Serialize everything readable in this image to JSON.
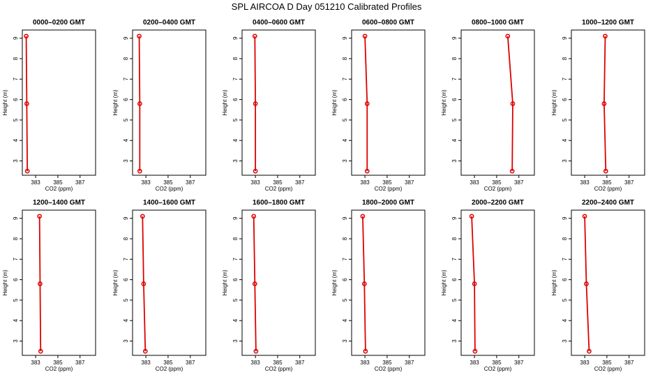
{
  "figure": {
    "title": "SPL AIRCOA D  Day 051210  Calibrated Profiles"
  },
  "axes": {
    "xlabel": "CO2 (ppm)",
    "ylabel": "Height (m)",
    "xticks": [
      383,
      385,
      387
    ],
    "yticks": [
      3,
      4,
      5,
      6,
      7,
      8,
      9
    ]
  },
  "colors": {
    "series": "#dd0000",
    "axis": "#000000"
  },
  "chart_data": [
    {
      "type": "line",
      "title": "0000–0200 GMT",
      "xlabel": "CO2 (ppm)",
      "ylabel": "Height (m)",
      "xlim": [
        381.8,
        388.4
      ],
      "ylim": [
        2.3,
        9.4
      ],
      "points": [
        {
          "x": 382.15,
          "y": 9.1
        },
        {
          "x": 382.2,
          "y": 5.8
        },
        {
          "x": 382.25,
          "y": 2.5
        }
      ]
    },
    {
      "type": "line",
      "title": "0200–0400 GMT",
      "xlabel": "CO2 (ppm)",
      "ylabel": "Height (m)",
      "xlim": [
        381.8,
        388.4
      ],
      "ylim": [
        2.3,
        9.4
      ],
      "points": [
        {
          "x": 382.4,
          "y": 9.1
        },
        {
          "x": 382.45,
          "y": 5.8
        },
        {
          "x": 382.45,
          "y": 2.5
        }
      ]
    },
    {
      "type": "line",
      "title": "0400–0600 GMT",
      "xlabel": "CO2 (ppm)",
      "ylabel": "Height (m)",
      "xlim": [
        381.8,
        388.4
      ],
      "ylim": [
        2.3,
        9.4
      ],
      "points": [
        {
          "x": 382.95,
          "y": 9.1
        },
        {
          "x": 383.0,
          "y": 5.8
        },
        {
          "x": 383.0,
          "y": 2.5
        }
      ]
    },
    {
      "type": "line",
      "title": "0600–0800 GMT",
      "xlabel": "CO2 (ppm)",
      "ylabel": "Height (m)",
      "xlim": [
        381.8,
        388.4
      ],
      "ylim": [
        2.3,
        9.4
      ],
      "points": [
        {
          "x": 383.0,
          "y": 9.1
        },
        {
          "x": 383.2,
          "y": 5.8
        },
        {
          "x": 383.2,
          "y": 2.5
        }
      ]
    },
    {
      "type": "line",
      "title": "0800–1000 GMT",
      "xlabel": "CO2 (ppm)",
      "ylabel": "Height (m)",
      "xlim": [
        381.8,
        388.4
      ],
      "ylim": [
        2.3,
        9.4
      ],
      "points": [
        {
          "x": 386.0,
          "y": 9.1
        },
        {
          "x": 386.45,
          "y": 5.8
        },
        {
          "x": 386.4,
          "y": 2.5
        }
      ]
    },
    {
      "type": "line",
      "title": "1000–1200 GMT",
      "xlabel": "CO2 (ppm)",
      "ylabel": "Height (m)",
      "xlim": [
        381.8,
        388.4
      ],
      "ylim": [
        2.3,
        9.4
      ],
      "points": [
        {
          "x": 384.85,
          "y": 9.1
        },
        {
          "x": 384.75,
          "y": 5.8
        },
        {
          "x": 384.9,
          "y": 2.5
        }
      ]
    },
    {
      "type": "line",
      "title": "1200–1400 GMT",
      "xlabel": "CO2 (ppm)",
      "ylabel": "Height (m)",
      "xlim": [
        381.8,
        388.4
      ],
      "ylim": [
        2.3,
        9.4
      ],
      "points": [
        {
          "x": 383.35,
          "y": 9.1
        },
        {
          "x": 383.4,
          "y": 5.8
        },
        {
          "x": 383.45,
          "y": 2.5
        }
      ]
    },
    {
      "type": "line",
      "title": "1400–1600 GMT",
      "xlabel": "CO2 (ppm)",
      "ylabel": "Height (m)",
      "xlim": [
        381.8,
        388.4
      ],
      "ylim": [
        2.3,
        9.4
      ],
      "points": [
        {
          "x": 382.7,
          "y": 9.1
        },
        {
          "x": 382.8,
          "y": 5.8
        },
        {
          "x": 382.95,
          "y": 2.5
        }
      ]
    },
    {
      "type": "line",
      "title": "1600–1800 GMT",
      "xlabel": "CO2 (ppm)",
      "ylabel": "Height (m)",
      "xlim": [
        381.8,
        388.4
      ],
      "ylim": [
        2.3,
        9.4
      ],
      "points": [
        {
          "x": 382.85,
          "y": 9.1
        },
        {
          "x": 382.95,
          "y": 5.8
        },
        {
          "x": 383.05,
          "y": 2.5
        }
      ]
    },
    {
      "type": "line",
      "title": "1800–2000 GMT",
      "xlabel": "CO2 (ppm)",
      "ylabel": "Height (m)",
      "xlim": [
        381.8,
        388.4
      ],
      "ylim": [
        2.3,
        9.4
      ],
      "points": [
        {
          "x": 382.8,
          "y": 9.1
        },
        {
          "x": 382.95,
          "y": 5.8
        },
        {
          "x": 383.05,
          "y": 2.5
        }
      ]
    },
    {
      "type": "line",
      "title": "2000–2200 GMT",
      "xlabel": "CO2 (ppm)",
      "ylabel": "Height (m)",
      "xlim": [
        381.8,
        388.4
      ],
      "ylim": [
        2.3,
        9.4
      ],
      "points": [
        {
          "x": 382.75,
          "y": 9.1
        },
        {
          "x": 383.0,
          "y": 5.8
        },
        {
          "x": 383.05,
          "y": 2.5
        }
      ]
    },
    {
      "type": "line",
      "title": "2200–2400 GMT",
      "xlabel": "CO2 (ppm)",
      "ylabel": "Height (m)",
      "xlim": [
        381.8,
        388.4
      ],
      "ylim": [
        2.3,
        9.4
      ],
      "points": [
        {
          "x": 383.0,
          "y": 9.1
        },
        {
          "x": 383.15,
          "y": 5.8
        },
        {
          "x": 383.4,
          "y": 2.5
        }
      ]
    }
  ]
}
